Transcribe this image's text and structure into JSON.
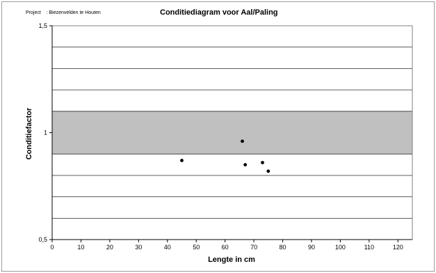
{
  "header": {
    "project_label": "Project",
    "project_value": ": Biezenvelden te Houten"
  },
  "chart_data": {
    "type": "scatter",
    "title": "Conditiediagram voor Aal/Paling",
    "xlabel": "Lengte in cm",
    "ylabel": "Conditiefactor",
    "xlim": [
      0,
      125
    ],
    "ylim": [
      0.5,
      1.5
    ],
    "x_ticks": [
      0,
      10,
      20,
      30,
      40,
      50,
      60,
      70,
      80,
      90,
      100,
      110,
      120
    ],
    "y_tick_labels": [
      {
        "value": 1.5,
        "label": "1,5"
      },
      {
        "value": 1.0,
        "label": "1"
      },
      {
        "value": 0.5,
        "label": "0,5"
      }
    ],
    "gridlines_y": [
      0.6,
      0.7,
      0.8,
      0.9,
      1.1,
      1.2,
      1.3,
      1.4
    ],
    "shaded_band": {
      "from": 0.9,
      "to": 1.1,
      "color": "#c0c0c0"
    },
    "points": [
      {
        "x": 45,
        "y": 0.87
      },
      {
        "x": 66,
        "y": 0.96
      },
      {
        "x": 67,
        "y": 0.85
      },
      {
        "x": 73,
        "y": 0.86
      },
      {
        "x": 75,
        "y": 0.82
      }
    ],
    "grid": true,
    "legend": "none",
    "point_color": "#000000"
  }
}
